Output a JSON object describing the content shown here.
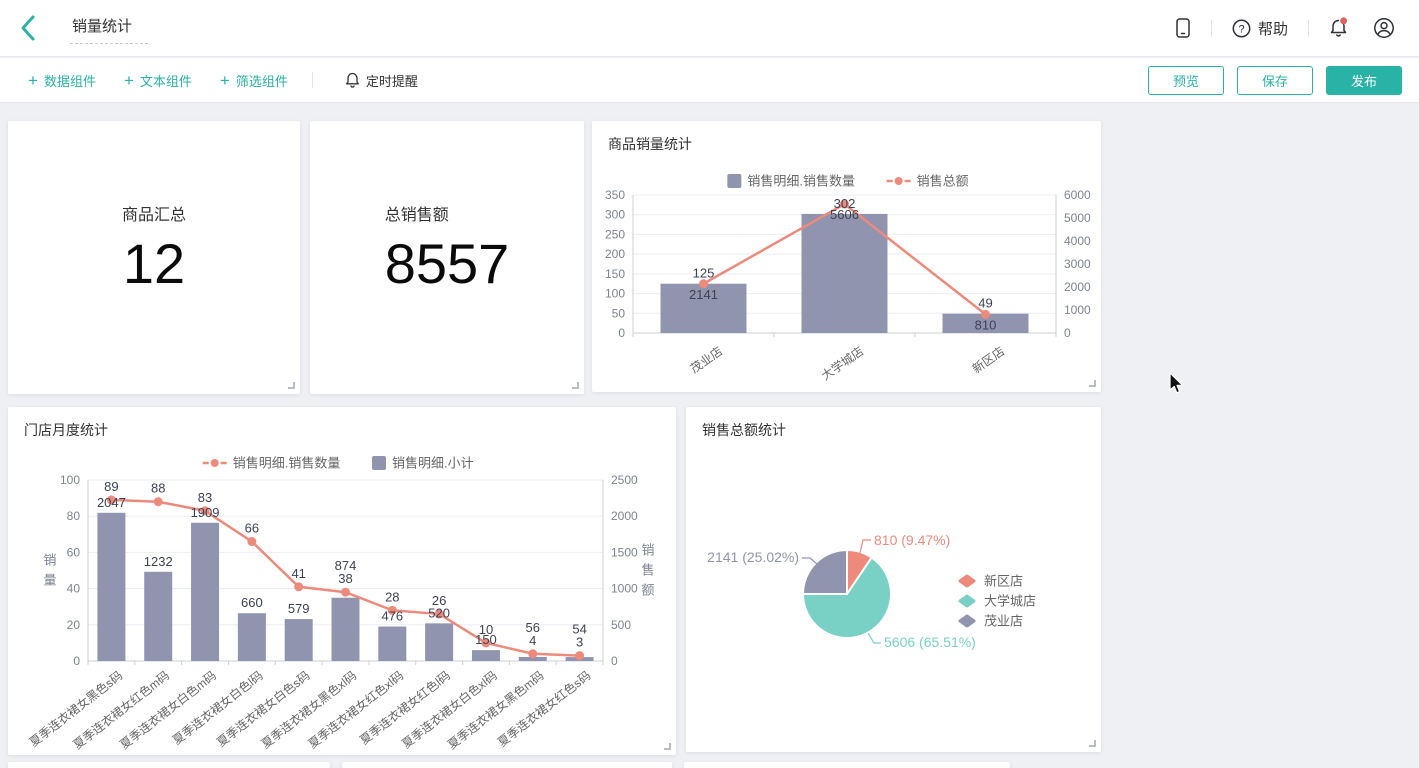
{
  "topbar": {
    "title": "销量统计",
    "help_label": "帮助",
    "icons": [
      "back-chevron-icon",
      "mobile-preview-icon",
      "question-circle-icon",
      "bell-notification-icon",
      "user-avatar-icon"
    ]
  },
  "toolbar": {
    "items": [
      {
        "label": "数据组件",
        "icon": "plus-icon"
      },
      {
        "label": "文本组件",
        "icon": "plus-icon"
      },
      {
        "label": "筛选组件",
        "icon": "plus-icon"
      }
    ],
    "reminder_label": "定时提醒",
    "reminder_icon": "bell-outline-icon",
    "preview_label": "预览",
    "save_label": "保存",
    "publish_label": "发布"
  },
  "colors": {
    "accent": "#29b3a6",
    "bar": "#9094ae",
    "line": "#ee8a7b",
    "pie_teal": "#79d1c5",
    "badge_red": "#e0605a",
    "grid": "#ebedf2",
    "axis": "#ccd0da",
    "tick_text": "#7d8392",
    "value_label": "#3d4356",
    "legend_text": "#666666"
  },
  "stat_cards": [
    {
      "title": "商品汇总",
      "value": "12"
    },
    {
      "title": "总销售额",
      "value": "8557"
    }
  ],
  "chart_data": [
    {
      "id": "goods",
      "type": "bar",
      "title": "商品销量统计",
      "categories": [
        "茂业店",
        "大学城店",
        "新区店"
      ],
      "series": [
        {
          "name": "销售明细.销售数量",
          "type": "bar",
          "axis": "left",
          "values": [
            125,
            302,
            49
          ]
        },
        {
          "name": "销售总额",
          "type": "line",
          "axis": "right",
          "values": [
            2141,
            5606,
            810
          ]
        }
      ],
      "left_axis": {
        "min": 0,
        "max": 350,
        "step": 50,
        "name": ""
      },
      "right_axis": {
        "min": 0,
        "max": 6000,
        "step": 1000,
        "name": ""
      },
      "legend_position": "top",
      "grid": true,
      "line_label_position": "below"
    },
    {
      "id": "store",
      "type": "bar",
      "title": "门店月度统计",
      "categories": [
        "夏季连衣裙女黑色s码",
        "夏季连衣裙女红色m码",
        "夏季连衣裙女白色m码",
        "夏季连衣裙女白色l码",
        "夏季连衣裙女白色s码",
        "夏季连衣裙女黑色xl码",
        "夏季连衣裙女红色xl码",
        "夏季连衣裙女红色l码",
        "夏季连衣裙女白色xl码",
        "夏季连衣裙女黑色m码",
        "夏季连衣裙女红色s码"
      ],
      "series": [
        {
          "name": "销售明细.销售数量",
          "type": "line",
          "axis": "left",
          "values": [
            89,
            88,
            83,
            66,
            41,
            38,
            28,
            26,
            10,
            4,
            3
          ]
        },
        {
          "name": "销售明细.小计",
          "type": "bar",
          "axis": "right",
          "values": [
            2047,
            1232,
            1909,
            660,
            579,
            874,
            476,
            520,
            150,
            56,
            54
          ]
        }
      ],
      "left_axis": {
        "min": 0,
        "max": 100,
        "step": 20,
        "name": "销量"
      },
      "right_axis": {
        "min": 0,
        "max": 2500,
        "step": 500,
        "name": "销售额"
      },
      "legend_position": "top",
      "grid": true,
      "line_label_position": "above"
    },
    {
      "id": "pie",
      "type": "pie",
      "title": "销售总额统计",
      "slices": [
        {
          "label": "新区店",
          "value": 810,
          "pct": "9.47%",
          "color_key": "line"
        },
        {
          "label": "大学城店",
          "value": 5606,
          "pct": "65.51%",
          "color_key": "pie_teal"
        },
        {
          "label": "茂业店",
          "value": 2141,
          "pct": "25.02%",
          "color_key": "bar"
        }
      ],
      "legend_position": "right"
    }
  ]
}
